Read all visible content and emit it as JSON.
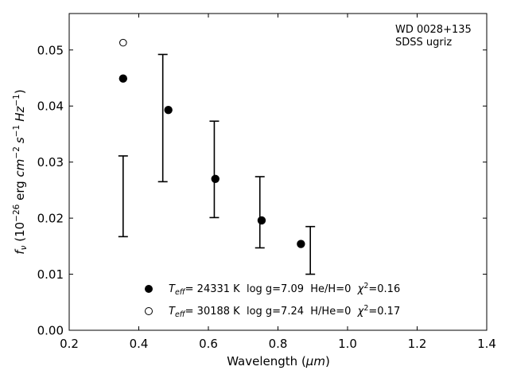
{
  "chart_data": {
    "type": "scatter",
    "xlabel_main": "Wavelength (",
    "xlabel_unit": "μm",
    "xlabel_close": ")",
    "ylabel_parts": {
      "f": "f",
      "nu": "ν",
      "open": " (10",
      "exp1": "−26",
      "erg": " erg ",
      "cm": "cm",
      "exp2": "−2",
      "s": "s",
      "exp3": "−1",
      "Hz": "Hz",
      "exp4": "−1",
      "close": ")"
    },
    "xlim": [
      0.2,
      1.4
    ],
    "ylim": [
      0.0,
      0.0565
    ],
    "xticks": [
      0.2,
      0.4,
      0.6,
      0.8,
      1.0,
      1.2,
      1.4
    ],
    "xtick_labels": [
      "0.2",
      "0.4",
      "0.6",
      "0.8",
      "1.0",
      "1.2",
      "1.4"
    ],
    "yticks": [
      0.0,
      0.01,
      0.02,
      0.03,
      0.04,
      0.05
    ],
    "ytick_labels": [
      "0.00",
      "0.01",
      "0.02",
      "0.03",
      "0.04",
      "0.05"
    ],
    "annotation_lines": [
      "WD 0028+135",
      "SDSS ugriz"
    ],
    "observed": {
      "x": [
        0.355,
        0.469,
        0.617,
        0.748,
        0.893
      ],
      "y": [
        0.0239,
        0.0379,
        0.0287,
        0.0211,
        0.0143
      ],
      "yerr_low": [
        0.0167,
        0.0265,
        0.0201,
        0.0147,
        0.01
      ],
      "yerr_high": [
        0.0311,
        0.0492,
        0.0373,
        0.0274,
        0.0185
      ]
    },
    "series": [
      {
        "name": "Teff= 24331 K  log g=7.09  He/H=0  χ²=0.16",
        "marker": "filled",
        "x": [
          0.355,
          0.485,
          0.62,
          0.753,
          0.866
        ],
        "y": [
          0.0449,
          0.0393,
          0.027,
          0.0196,
          0.0154
        ]
      },
      {
        "name": "Teff= 30188 K  log g=7.24  H/He=0  χ²=0.17",
        "marker": "open",
        "x": [
          0.355
        ],
        "y": [
          0.0513
        ]
      }
    ],
    "legend": [
      {
        "T": "T",
        "eff": "eff",
        "mid": "= 24331 K  log g=7.09  He/H=0  ",
        "chi": "χ",
        "sq": "2",
        "tail": "=0.16"
      },
      {
        "T": "T",
        "eff": "eff",
        "mid": "= 30188 K  log g=7.24  H/He=0  ",
        "chi": "χ",
        "sq": "2",
        "tail": "=0.17"
      }
    ],
    "colors": {
      "marker": "#000000",
      "errorbar": "#000000",
      "axes": "#000000"
    },
    "grid": false,
    "legend_position": "bottom-center"
  }
}
